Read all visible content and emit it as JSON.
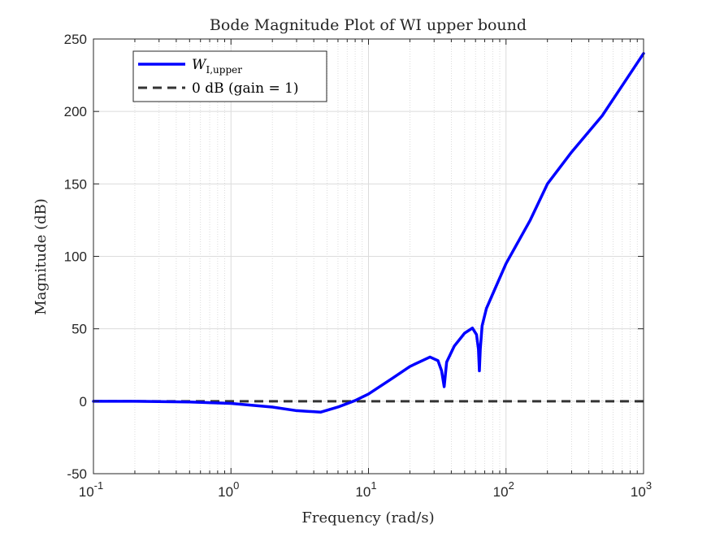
{
  "chart_data": {
    "type": "line",
    "title": "Bode Magnitude Plot of WI upper bound",
    "xlabel": "Frequency (rad/s)",
    "ylabel": "Magnitude (dB)",
    "xscale": "log",
    "xlim": [
      0.1,
      1000
    ],
    "ylim": [
      -50,
      250
    ],
    "x_tick_labels": [
      {
        "base": "10",
        "exp": "-1"
      },
      {
        "base": "10",
        "exp": "0"
      },
      {
        "base": "10",
        "exp": "1"
      },
      {
        "base": "10",
        "exp": "2"
      },
      {
        "base": "10",
        "exp": "3"
      }
    ],
    "y_ticks": [
      -50,
      0,
      50,
      100,
      150,
      200,
      250
    ],
    "grid": true,
    "legend_position": "top-left",
    "series": [
      {
        "name": "W_{I,upper}",
        "legend_main": "W",
        "legend_sub": "I,upper",
        "color": "#0000ff",
        "style": "solid",
        "x": [
          0.1,
          0.2,
          0.5,
          1,
          2,
          3,
          4.5,
          6,
          8,
          10,
          15,
          20,
          28,
          32,
          34,
          35.5,
          37,
          42,
          50,
          57,
          61,
          63,
          64,
          65,
          67,
          72,
          80,
          100,
          150,
          200,
          300,
          500,
          1000
        ],
        "y": [
          0,
          0,
          -0.5,
          -1.5,
          -4,
          -6.5,
          -7.5,
          -4,
          0.5,
          5,
          16,
          24,
          30.5,
          28,
          21,
          10,
          27,
          38,
          47,
          50.5,
          46,
          36,
          21,
          36,
          52,
          64,
          74,
          95,
          125,
          150,
          172,
          197,
          240
        ]
      },
      {
        "name": "0 dB (gain = 1)",
        "color": "#333333",
        "style": "dashed",
        "x": [
          0.1,
          1000
        ],
        "y": [
          0,
          0
        ]
      }
    ]
  }
}
